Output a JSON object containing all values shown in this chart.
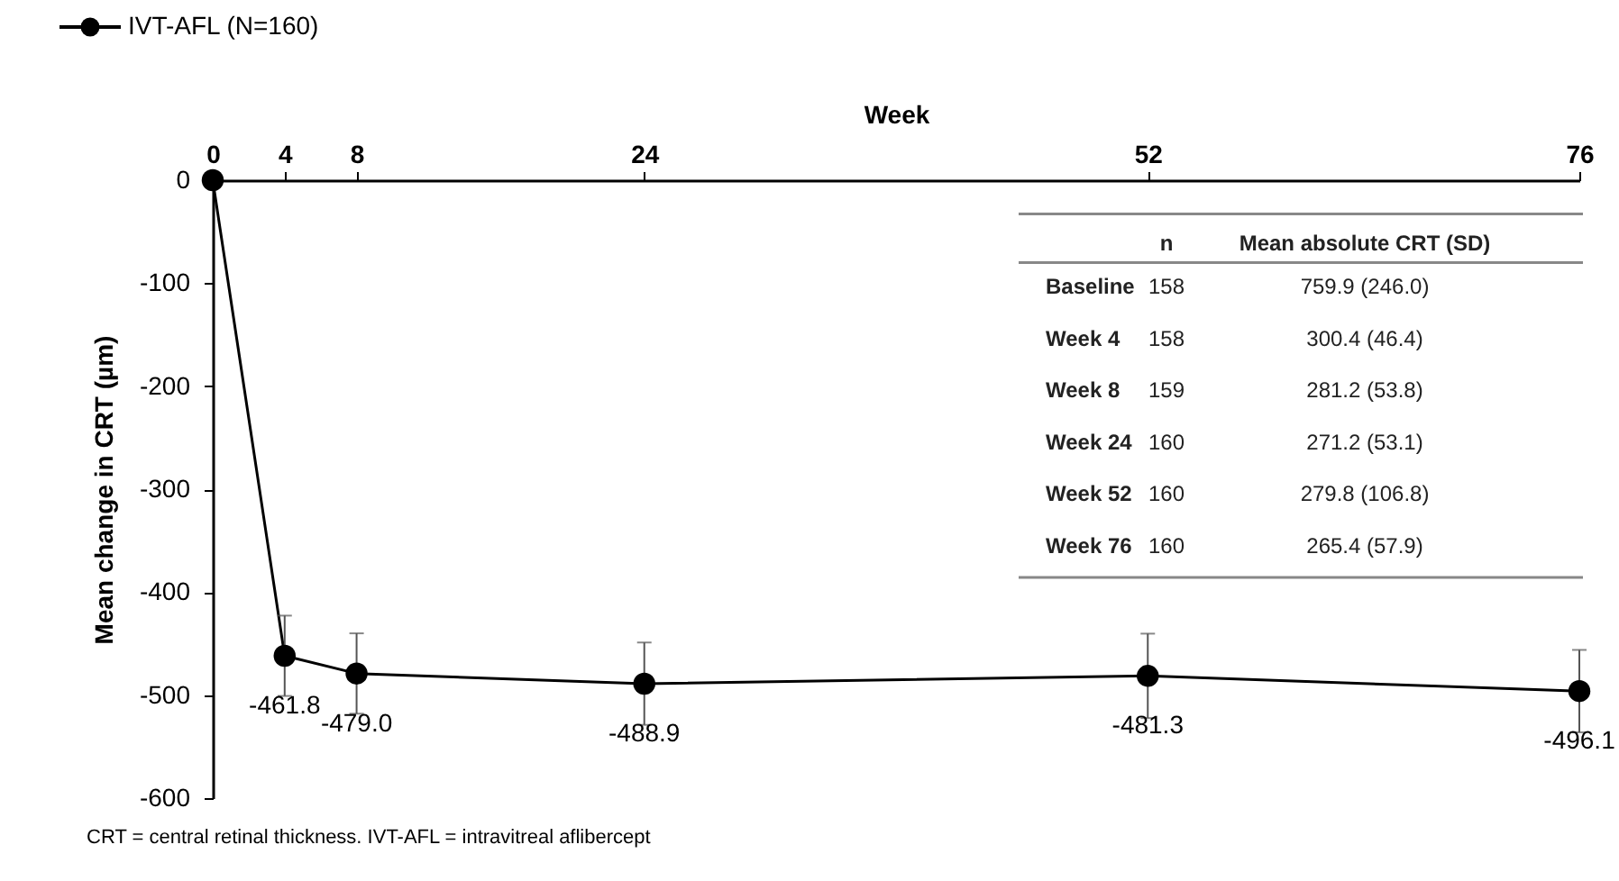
{
  "chart_data": {
    "type": "line",
    "xlabel": "Week",
    "ylabel": "Mean change in CRT (µm)",
    "x": [
      0,
      4,
      8,
      24,
      52,
      76
    ],
    "series": [
      {
        "name": "IVT-AFL (N=160)",
        "color": "#000000",
        "values": [
          0,
          -461.8,
          -479.0,
          -488.9,
          -481.3,
          -496.1
        ],
        "errors": [
          null,
          39,
          39,
          40,
          41,
          40
        ],
        "value_labels": [
          null,
          "-461.8",
          "-479.0",
          "-488.9",
          "-481.3",
          "-496.1"
        ]
      }
    ],
    "xlim": [
      0,
      76
    ],
    "xticks": [
      0,
      4,
      8,
      24,
      52,
      76
    ],
    "ylim": [
      -600,
      0
    ],
    "yticks": [
      -600,
      -500,
      -400,
      -300,
      -200,
      -100,
      0
    ],
    "grid": false,
    "legend": "top left",
    "marker": "circle",
    "line_style": "solid",
    "annotations": [
      "CRT = central retinal thickness. IVT-AFL = intravitreal aflibercept",
      "n",
      "Mean absolute CRT (SD)",
      "Baseline",
      "158",
      "759.9 (246.0)",
      "Week 4",
      "158",
      "300.4 (46.4)",
      "Week 8",
      "159",
      "281.2 (53.8)",
      "Week 24",
      "160",
      "271.2 (53.1)",
      "Week 52",
      "160",
      "279.8 (106.8)",
      "Week 76",
      "160",
      "265.4 (57.9)"
    ]
  }
}
